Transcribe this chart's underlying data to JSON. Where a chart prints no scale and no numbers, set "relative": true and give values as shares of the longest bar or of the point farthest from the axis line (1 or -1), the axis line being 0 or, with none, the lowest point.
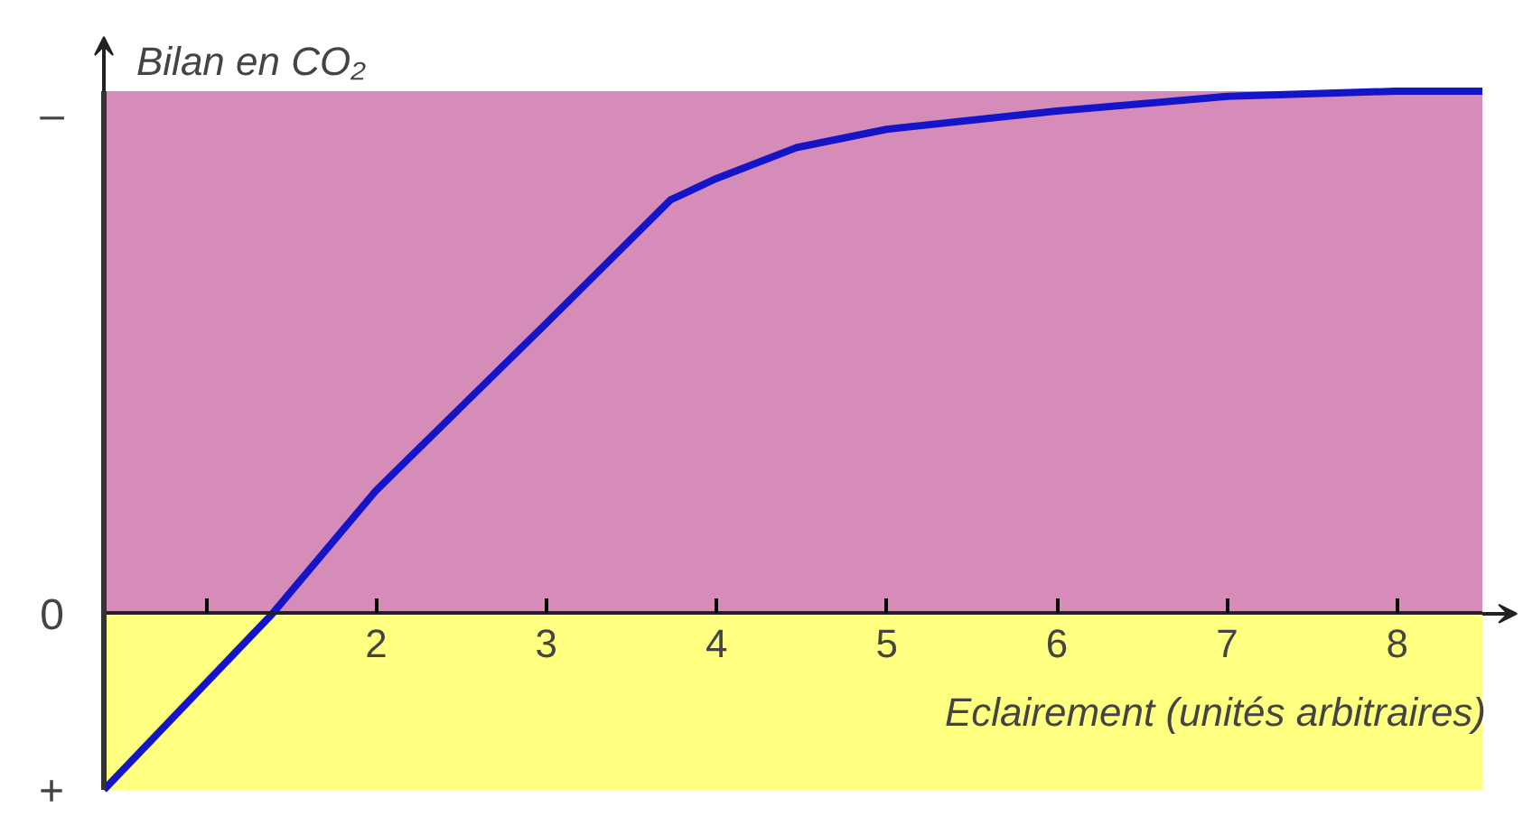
{
  "chart_data": {
    "type": "line",
    "ylabel": "Bilan en CO₂",
    "xlabel": "Eclairement (unités arbitraires)",
    "relative": true,
    "x": [
      0.4,
      1.39,
      2,
      3,
      3.73,
      4,
      4.47,
      5,
      6,
      7,
      7.99,
      8.5
    ],
    "series": [
      {
        "color": "#1414c8",
        "values": [
          -0.337,
          0,
          0.236,
          0.556,
          0.792,
          0.833,
          0.892,
          0.927,
          0.962,
          0.99,
          1,
          1
        ]
      }
    ],
    "xlim": [
      0.4,
      8.5
    ],
    "xticks": [
      {
        "value": 1,
        "label": null
      },
      2,
      3,
      4,
      5,
      6,
      7,
      8
    ],
    "annotations": [
      "–",
      "0",
      "+"
    ],
    "bands": [
      {
        "axis": "y",
        "from": 0,
        "to": 1,
        "color": "#d68cb8"
      },
      {
        "axis": "y",
        "from": -0.337,
        "to": 0,
        "color": "#ffff80"
      }
    ],
    "grid": false,
    "marker": "none",
    "line_style": "solid"
  }
}
